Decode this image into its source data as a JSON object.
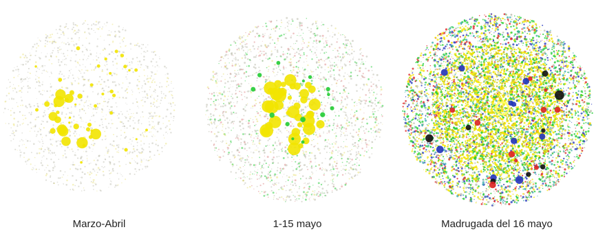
{
  "panels": [
    {
      "caption": "Marzo-Abril"
    },
    {
      "caption": "1-15 mayo"
    },
    {
      "caption": "Madrugada del 16 mayo"
    }
  ],
  "colors": {
    "yellow": "#f2e400",
    "green": "#22cc33",
    "red": "#dd2222",
    "blue": "#2233bb",
    "black": "#111111",
    "gray": "#b8b8a8"
  }
}
